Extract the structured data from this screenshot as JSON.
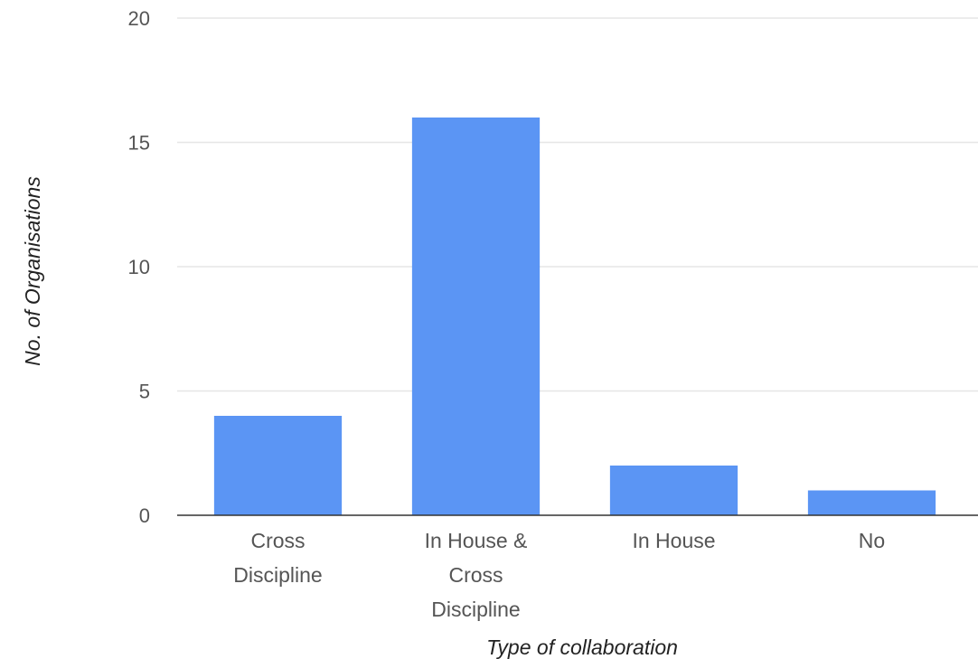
{
  "chart_data": {
    "type": "bar",
    "categories": [
      "Cross Discipline",
      "In House & Cross Discipline",
      "In House",
      "No"
    ],
    "category_lines": [
      [
        "Cross",
        "Discipline"
      ],
      [
        "In House &",
        "Cross",
        "Discipline"
      ],
      [
        "In House"
      ],
      [
        "No"
      ]
    ],
    "values": [
      4,
      16,
      2,
      1
    ],
    "title": "",
    "xlabel": "Type of collaboration",
    "ylabel": "No. of Organisations",
    "ylim": [
      0,
      20
    ],
    "yticks": [
      0,
      5,
      10,
      15,
      20
    ],
    "grid": true,
    "legend": "none",
    "bar_color": "#5b95f4"
  }
}
